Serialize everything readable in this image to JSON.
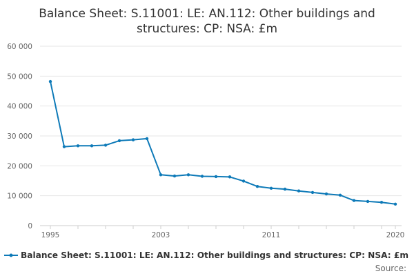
{
  "chart_data": {
    "type": "line",
    "title": "Balance Sheet: S.11001: LE: AN.112: Other buildings and structures: CP: NSA: £m",
    "title_lines": [
      "Balance Sheet: S.11001: LE: AN.112: Other buildings and",
      "structures: CP: NSA: £m"
    ],
    "xlabel": "",
    "ylabel": "",
    "xlim": [
      1995,
      2020
    ],
    "ylim": [
      0,
      60000
    ],
    "y_ticks": [
      {
        "value": 0,
        "label": "0"
      },
      {
        "value": 10000,
        "label": "10 000"
      },
      {
        "value": 20000,
        "label": "20 000"
      },
      {
        "value": 30000,
        "label": "30 000"
      },
      {
        "value": 40000,
        "label": "40 000"
      },
      {
        "value": 50000,
        "label": "50 000"
      },
      {
        "value": 60000,
        "label": "60 000"
      }
    ],
    "x_ticks": [
      {
        "value": 1995,
        "label": "1995"
      },
      {
        "value": 2003,
        "label": "2003"
      },
      {
        "value": 2011,
        "label": "2011"
      },
      {
        "value": 2020,
        "label": "2020"
      }
    ],
    "x": [
      1995,
      1996,
      1997,
      1998,
      1999,
      2000,
      2001,
      2002,
      2003,
      2004,
      2005,
      2006,
      2007,
      2008,
      2009,
      2010,
      2011,
      2012,
      2013,
      2014,
      2015,
      2016,
      2017,
      2018,
      2019,
      2020
    ],
    "series": [
      {
        "name": "Balance Sheet: S.11001: LE: AN.112: Other buildings and structures: CP: NSA: £m",
        "color": "#0e7ab8",
        "values": [
          48200,
          26400,
          26700,
          26700,
          26900,
          28400,
          28700,
          29100,
          17000,
          16600,
          17000,
          16500,
          16400,
          16300,
          14900,
          13100,
          12500,
          12200,
          11600,
          11100,
          10600,
          10200,
          8400,
          8100,
          7800,
          7200
        ]
      }
    ],
    "grid": true,
    "legend_position": "bottom",
    "source_label": "Source:"
  }
}
